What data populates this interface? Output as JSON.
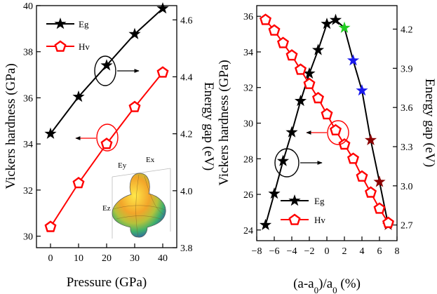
{
  "chart_data": [
    {
      "type": "line",
      "panel": "left",
      "xlabel": "Pressure (GPa)",
      "ylabel": "Vickers hardness (GPa)",
      "y2label": "Energy  gap (eV)",
      "xlim": [
        -5,
        45
      ],
      "ylim": [
        29.5,
        40
      ],
      "y2lim": [
        3.8,
        4.65
      ],
      "xticks": [
        0,
        10,
        20,
        30,
        40
      ],
      "yticks": [
        30,
        32,
        34,
        36,
        38,
        40
      ],
      "y2ticks": [
        3.8,
        4.0,
        4.2,
        4.4,
        4.6
      ],
      "x": [
        0,
        10,
        20,
        30,
        40
      ],
      "series": [
        {
          "name": "Eg",
          "axis": "right",
          "marker": "star",
          "color": "#000000",
          "values": [
            4.2,
            4.33,
            4.44,
            4.55,
            4.64
          ]
        },
        {
          "name": "Hv",
          "axis": "left",
          "marker": "pentagon",
          "color": "#ff0000",
          "values": [
            30.4,
            32.3,
            34.0,
            35.6,
            37.1
          ]
        }
      ],
      "legend": {
        "position": "top-left",
        "entries": [
          "Eg",
          "Hv"
        ]
      },
      "annotations": [
        {
          "type": "ellipse-arrow",
          "at_x": 20,
          "target": "Eg",
          "direction": "right"
        },
        {
          "type": "ellipse-arrow",
          "at_x": 20,
          "target": "Hv",
          "direction": "left"
        }
      ],
      "inset": {
        "axis_labels": [
          "Ey",
          "Ex",
          "Ez"
        ]
      }
    },
    {
      "type": "line",
      "panel": "right",
      "xlabel": "(a-a0)/a0 (%)",
      "ylabel": "Vickers hardness (GPa)",
      "y2label": "Energy  gap (eV)",
      "xlim": [
        -8,
        8
      ],
      "ylim": [
        23.4,
        36.6
      ],
      "y2lim": [
        2.58,
        4.38
      ],
      "xticks": [
        -8,
        -6,
        -4,
        -2,
        0,
        2,
        4,
        6,
        8
      ],
      "yticks": [
        24,
        26,
        28,
        30,
        32,
        34,
        36
      ],
      "y2ticks": [
        2.7,
        3.0,
        3.3,
        3.6,
        3.9,
        4.2
      ],
      "series": [
        {
          "name": "Eg",
          "axis": "right",
          "marker": "star",
          "color": "#000000",
          "x": [
            -7,
            -6,
            -5,
            -4,
            -3,
            -2,
            -1,
            0,
            1,
            2,
            3,
            4,
            5,
            6,
            7
          ],
          "values": [
            2.7,
            2.94,
            3.19,
            3.41,
            3.65,
            3.86,
            4.04,
            4.24,
            4.27,
            4.21,
            3.96,
            3.73,
            3.35,
            3.03,
            2.7
          ],
          "point_colors": [
            "#000000",
            "#000000",
            "#000000",
            "#000000",
            "#000000",
            "#000000",
            "#000000",
            "#000000",
            "#000000",
            "#22cc22",
            "#1a1aee",
            "#1a1aee",
            "#8b0000",
            "#8b0000",
            "#8b0000"
          ]
        },
        {
          "name": "Hv",
          "axis": "left",
          "marker": "pentagon",
          "color": "#ff0000",
          "x": [
            -7,
            -6,
            -5,
            -4,
            -3,
            -2,
            -1,
            0,
            1,
            2,
            3,
            4,
            5,
            6,
            7
          ],
          "values": [
            35.8,
            35.2,
            34.5,
            33.8,
            33.0,
            32.2,
            31.4,
            30.5,
            29.6,
            28.8,
            28.0,
            27.0,
            26.1,
            25.2,
            24.4
          ]
        }
      ],
      "legend": {
        "position": "bottom-left",
        "entries": [
          "Eg",
          "Hv"
        ]
      },
      "annotations": [
        {
          "type": "ellipse-arrow",
          "at_x": 1,
          "target": "Hv",
          "direction": "left"
        },
        {
          "type": "ellipse-arrow",
          "at_x": -5,
          "target": "Eg",
          "direction": "right"
        }
      ]
    }
  ]
}
